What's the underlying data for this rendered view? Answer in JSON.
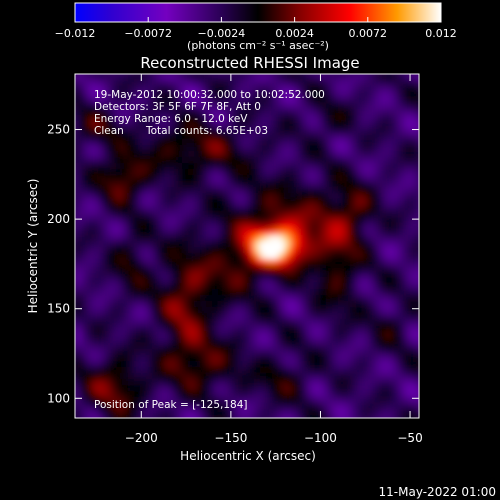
{
  "chart_data": {
    "type": "heatmap",
    "title": "Reconstructed RHESSI Image",
    "xlabel": "Heliocentric X (arcsec)",
    "ylabel": "Heliocentric Y (arcsec)",
    "xlim": [
      -237,
      -45
    ],
    "ylim": [
      89,
      281
    ],
    "x_ticks": [
      -200,
      -150,
      -100,
      -50
    ],
    "x_tick_labels": [
      "−200",
      "−150",
      "−100",
      "−50"
    ],
    "y_ticks": [
      100,
      150,
      200,
      250
    ],
    "y_tick_labels": [
      "100",
      "150",
      "200",
      "250"
    ],
    "colorbar": {
      "range": [
        -0.012,
        0.012
      ],
      "ticks": [
        -0.012,
        -0.0072,
        -0.0024,
        0.0024,
        0.0072,
        0.012
      ],
      "tick_labels": [
        "−0.012",
        "−0.0072",
        "−0.0024",
        "0.0024",
        "0.0072",
        "0.012"
      ],
      "unit_label": "(photons cm⁻² s⁻¹ asec⁻²)",
      "colors": [
        "#0000ff",
        "#3d00ad",
        "#7400c0",
        "#2a0055",
        "#000000",
        "#8a0000",
        "#ff0000",
        "#ff9a00",
        "#ffffff"
      ]
    },
    "annotations": {
      "time": "19-May-2012 10:00:32.000 to 10:02:52.000",
      "detectors": "Detectors: 3F 5F 6F 7F 8F, Att 0",
      "energy": "Energy Range: 6.0 - 12.0 keV",
      "clean": "Clean",
      "counts": "Total counts: 6.65E+03",
      "peak": "Position of Peak = [-125,184]"
    },
    "peak": [
      -125,
      184
    ],
    "grid": false
  },
  "footer": {
    "date": "11-May-2022 01:00"
  }
}
